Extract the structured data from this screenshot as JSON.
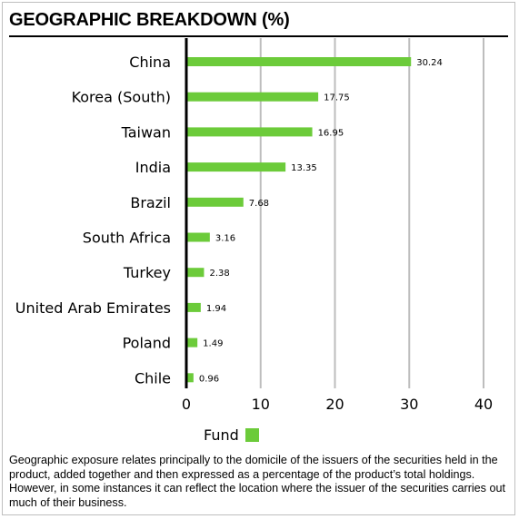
{
  "title": "GEOGRAPHIC BREAKDOWN (%)",
  "legend_label": "Fund",
  "footnote": "Geographic exposure relates principally to the domicile of the issuers of the securities held in the product, added together and then expressed as a percentage of the product’s total holdings. However, in some instances it can reflect the location where the issuer of the securities carries out much of their business.",
  "chart_data": {
    "type": "bar",
    "orientation": "horizontal",
    "categories": [
      "China",
      "Korea (South)",
      "Taiwan",
      "India",
      "Brazil",
      "South Africa",
      "Turkey",
      "United Arab Emirates",
      "Poland",
      "Chile"
    ],
    "series": [
      {
        "name": "Fund",
        "values": [
          30.24,
          17.75,
          16.95,
          13.35,
          7.68,
          3.16,
          2.38,
          1.94,
          1.49,
          0.96
        ],
        "color": "#6ccb3a"
      }
    ],
    "value_labels": [
      "30.24",
      "17.75",
      "16.95",
      "13.35",
      "7.68",
      "3.16",
      "2.38",
      "1.94",
      "1.49",
      "0.96"
    ],
    "xlim": [
      0,
      40
    ],
    "xticks": [
      0,
      10,
      20,
      30,
      40
    ],
    "grid": true,
    "legend_position": "bottom"
  }
}
